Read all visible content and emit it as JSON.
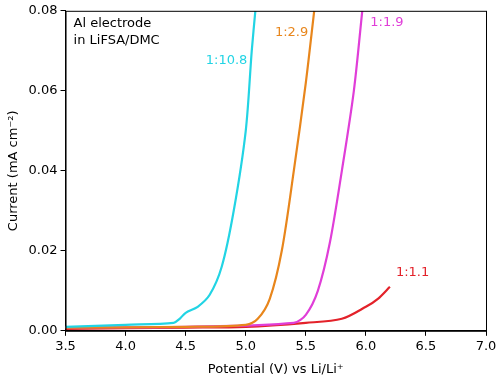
{
  "chart_data": {
    "type": "line",
    "annotations": [
      "Al electrode",
      "in LiFSA/DMC"
    ],
    "x_label": "Potential (V) vs Li/Li⁺",
    "y_label": "Current (mA cm⁻²)",
    "xlim": [
      3.5,
      7.0
    ],
    "xticks": [
      3.5,
      {
        "value": 4,
        "label": "4.0"
      },
      4.5,
      {
        "value": 5,
        "label": "5.0"
      },
      5.5,
      {
        "value": 6,
        "label": "6.0"
      },
      6.5,
      {
        "value": 7,
        "label": "7.0"
      }
    ],
    "ylim": [
      0,
      0.08
    ],
    "yticks": [
      {
        "value": 0,
        "label": "0.00"
      },
      {
        "value": 0.02,
        "label": "0.02"
      },
      {
        "value": 0.04,
        "label": "0.04"
      },
      {
        "value": 0.06,
        "label": "0.06"
      },
      {
        "value": 0.08,
        "label": "0.08"
      }
    ],
    "grid": false,
    "series": [
      {
        "name": "1:10.8",
        "color": "#22d4e4",
        "x": [
          3.5,
          4.0,
          4.4,
          4.45,
          4.5,
          4.6,
          4.7,
          4.8,
          4.9,
          5.0,
          5.05,
          5.08
        ],
        "values": [
          0.001,
          0.0015,
          0.002,
          0.003,
          0.0045,
          0.006,
          0.009,
          0.016,
          0.03,
          0.05,
          0.07,
          0.08
        ]
      },
      {
        "name": "1:2.9",
        "color": "#e8861c",
        "x": [
          3.5,
          4.5,
          5.0,
          5.1,
          5.2,
          5.3,
          5.4,
          5.5,
          5.57
        ],
        "values": [
          0.0008,
          0.001,
          0.0015,
          0.003,
          0.008,
          0.02,
          0.04,
          0.062,
          0.08
        ]
      },
      {
        "name": "1:1.9",
        "color": "#e03ed8",
        "x": [
          3.5,
          4.5,
          5.4,
          5.5,
          5.6,
          5.7,
          5.8,
          5.9,
          5.97
        ],
        "values": [
          0.0008,
          0.001,
          0.002,
          0.004,
          0.01,
          0.022,
          0.04,
          0.06,
          0.08
        ]
      },
      {
        "name": "1:1.1",
        "color": "#e3222a",
        "x": [
          3.5,
          4.5,
          5.0,
          5.5,
          5.8,
          6.0,
          6.1,
          6.2
        ],
        "values": [
          0.0005,
          0.0008,
          0.001,
          0.002,
          0.003,
          0.006,
          0.008,
          0.011
        ]
      }
    ]
  }
}
